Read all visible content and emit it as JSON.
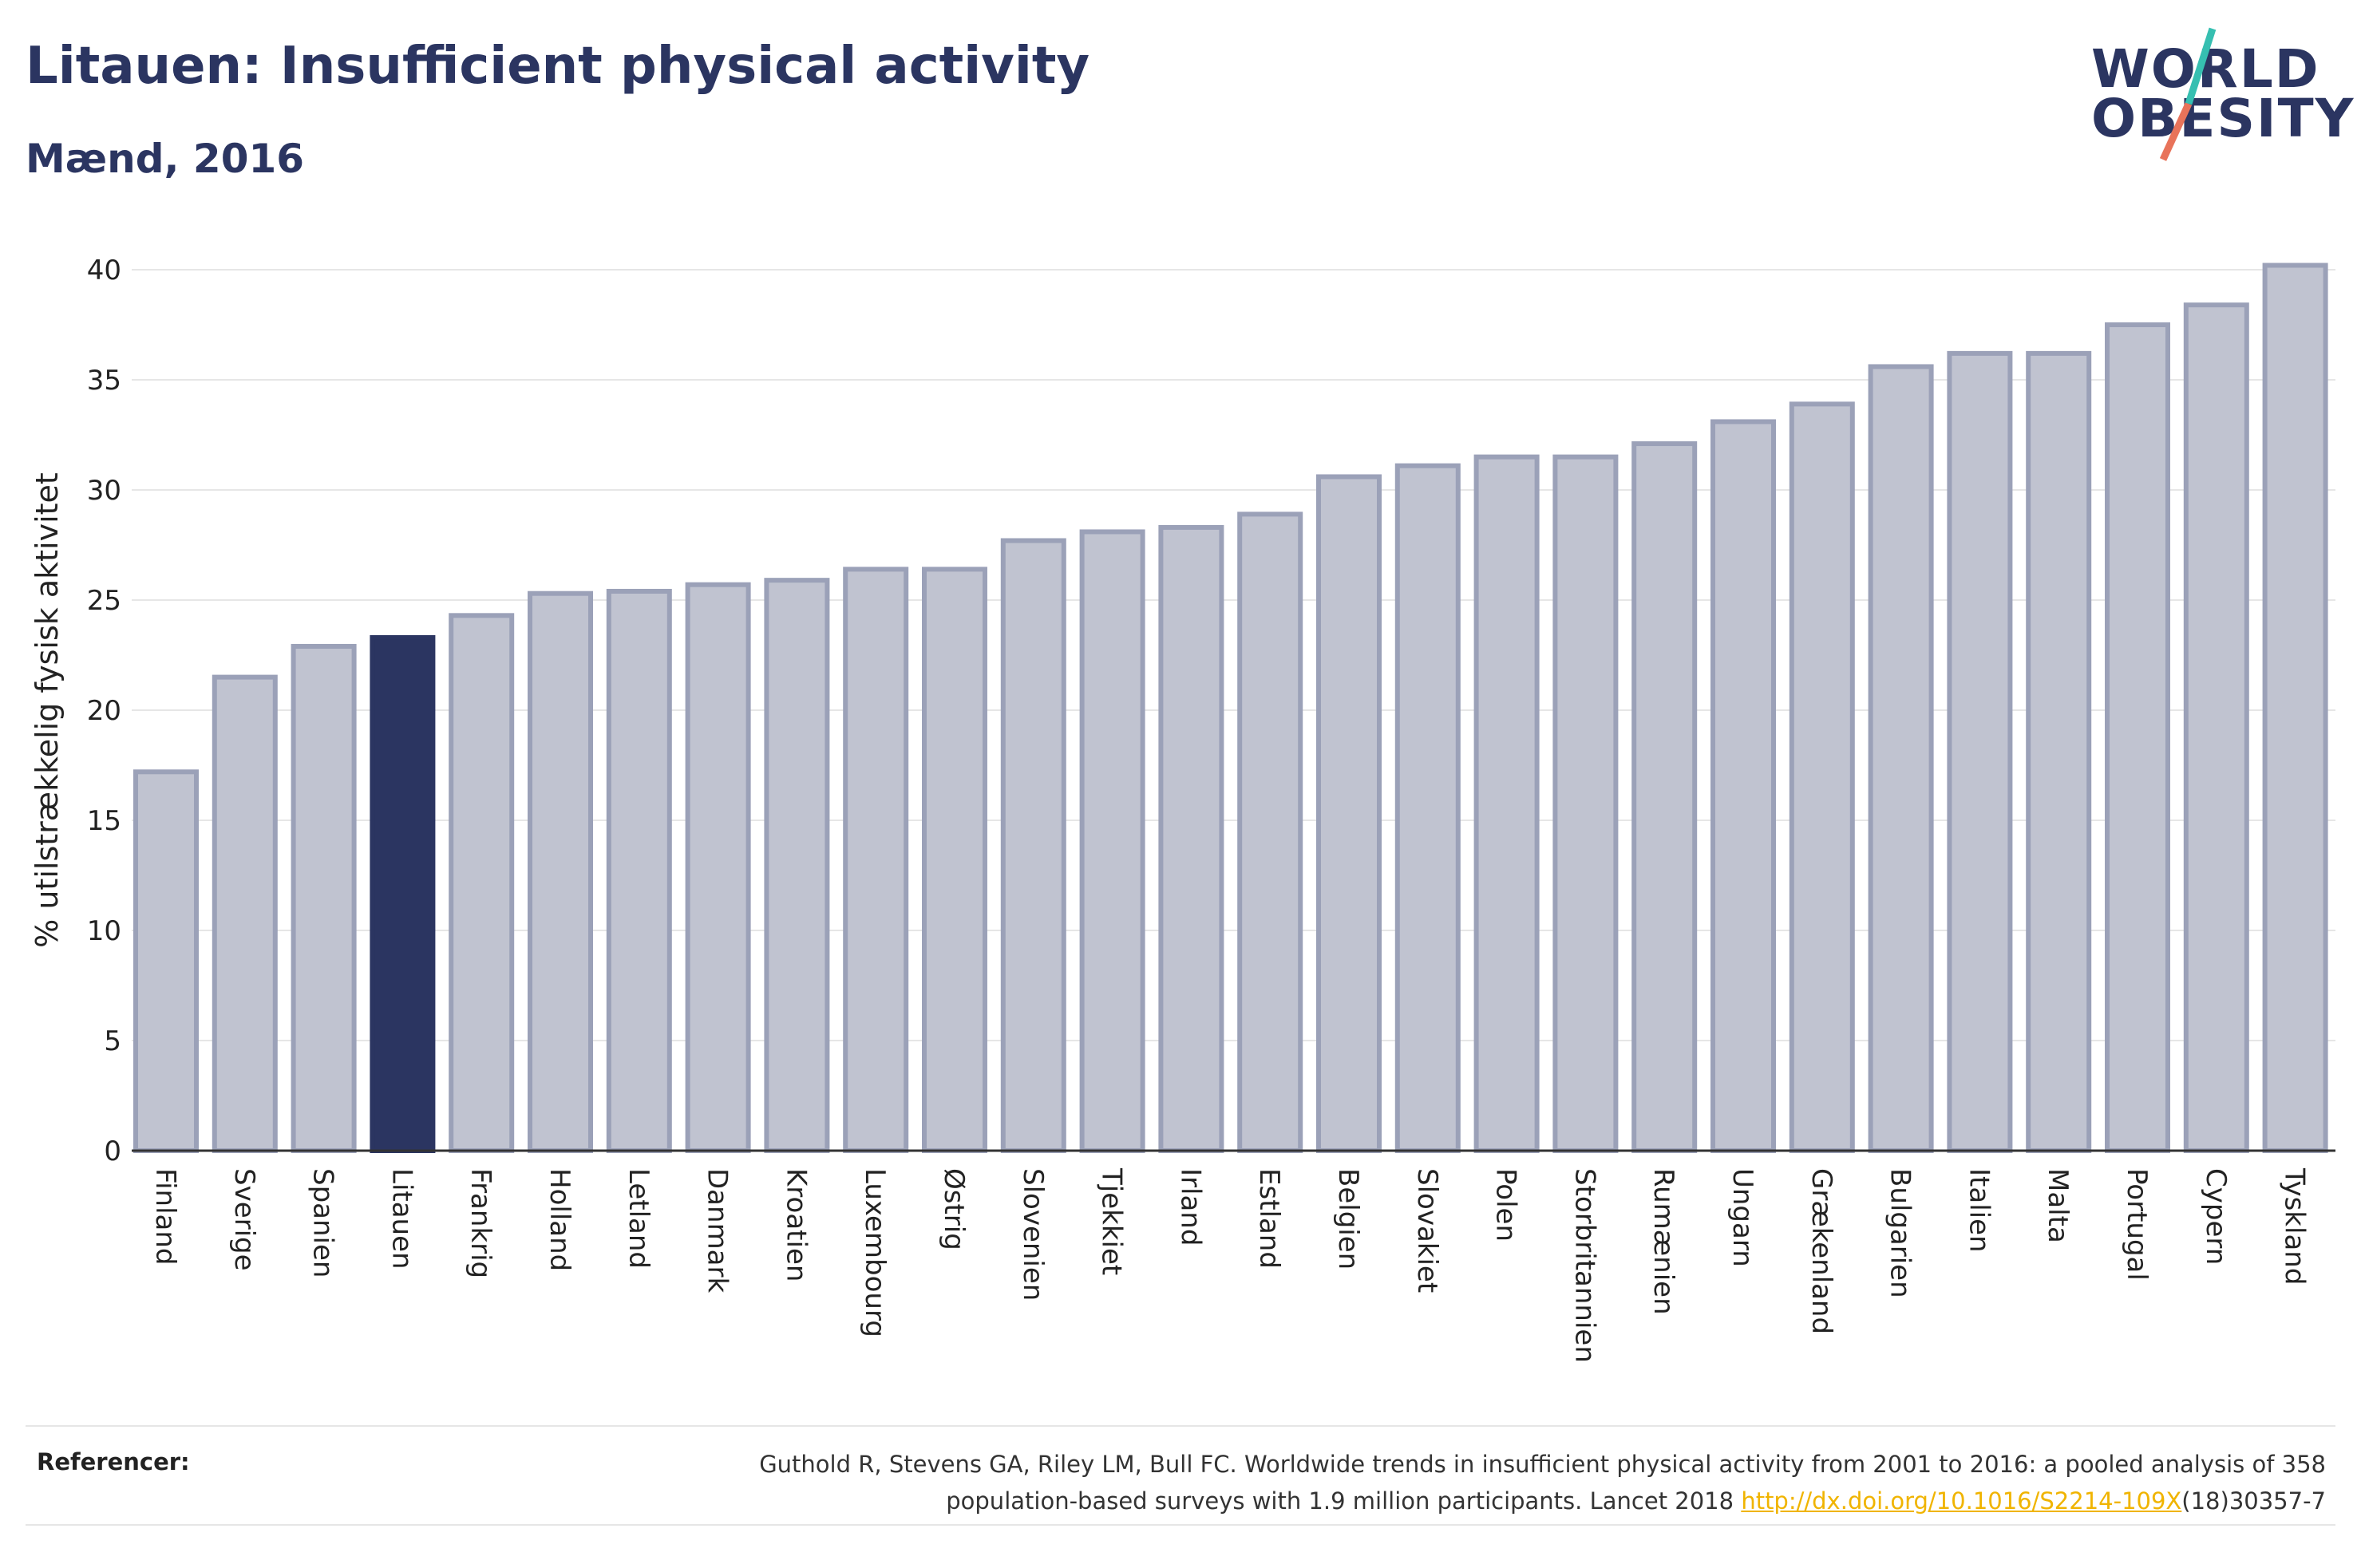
{
  "header": {
    "title": "Litauen: Insufficient physical activity",
    "subtitle": "Mænd, 2016"
  },
  "logo": {
    "line1": "WORLD",
    "line2": "OBESITY"
  },
  "chart_data": {
    "type": "bar",
    "ylabel": "% utilstrækkelig fysisk aktivitet",
    "ylim": [
      0,
      40
    ],
    "yticks": [
      0,
      5,
      10,
      15,
      20,
      25,
      30,
      35,
      40
    ],
    "grid": true,
    "highlight": "Litauen",
    "categories": [
      "Finland",
      "Sverige",
      "Spanien",
      "Litauen",
      "Frankrig",
      "Holland",
      "Letland",
      "Danmark",
      "Kroatien",
      "Luxembourg",
      "Østrig",
      "Slovenien",
      "Tjekkiet",
      "Irland",
      "Estland",
      "Belgien",
      "Slovakiet",
      "Polen",
      "Storbritannien",
      "Rumænien",
      "Ungarn",
      "Grækenland",
      "Bulgarien",
      "Italien",
      "Malta",
      "Portugal",
      "Cypern",
      "Tyskland"
    ],
    "values": [
      17.2,
      21.5,
      22.9,
      23.3,
      24.3,
      25.3,
      25.4,
      25.7,
      25.9,
      26.4,
      26.4,
      27.7,
      28.1,
      28.3,
      28.9,
      30.6,
      31.1,
      31.5,
      31.5,
      32.1,
      33.1,
      33.9,
      35.6,
      36.2,
      36.2,
      37.5,
      38.4,
      40.2
    ],
    "colors": {
      "bar": "#c0c3d0",
      "bar_stroke": "#9ba1b8",
      "highlight": "#2b3561",
      "grid": "#e6e6e6",
      "axis": "#333333"
    }
  },
  "references": {
    "label": "Referencer:",
    "line1": "Guthold R, Stevens GA, Riley LM, Bull FC. Worldwide trends in insufficient physical activity from 2001 to 2016: a pooled analysis of 358",
    "line2_pre": "population-based surveys with 1.9 million participants. Lancet 2018 ",
    "link": "http://dx.doi.org/10.1016/S2214-109X",
    "line2_post": "(18)30357-7"
  }
}
